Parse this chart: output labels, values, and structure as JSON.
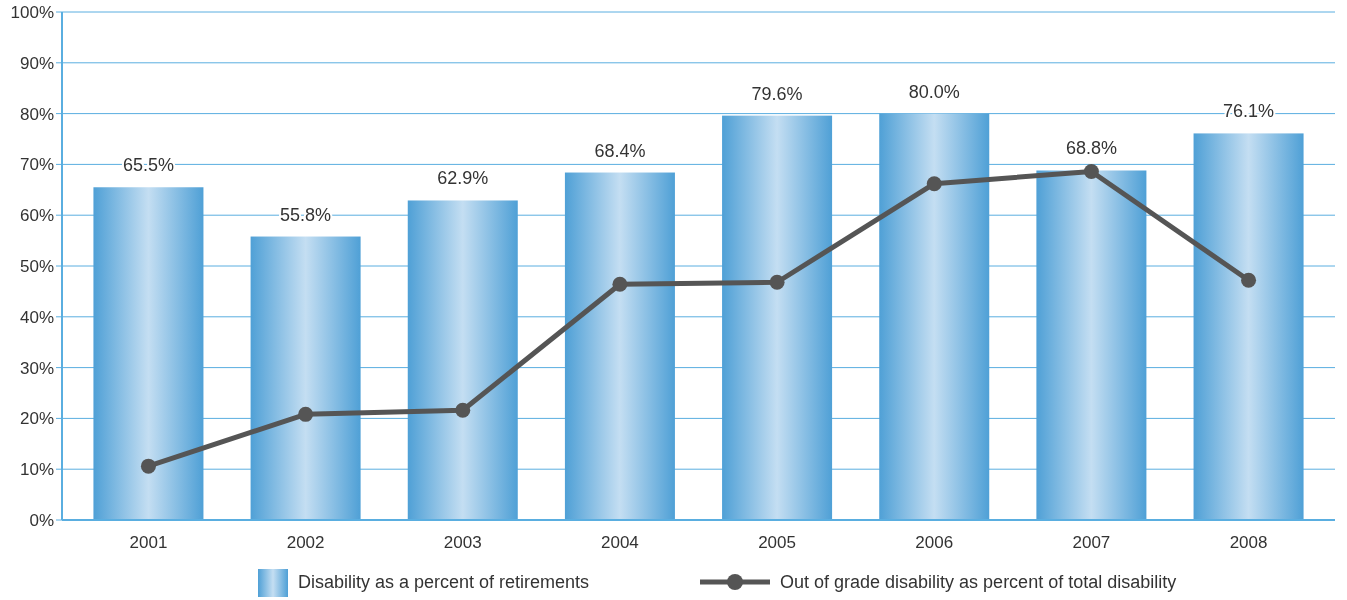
{
  "chart_data": {
    "type": "bar",
    "categories": [
      "2001",
      "2002",
      "2003",
      "2004",
      "2005",
      "2006",
      "2007",
      "2008"
    ],
    "series": [
      {
        "name": "Disability as a percent of retirements",
        "color": "#4fa0d6",
        "values": [
          65.5,
          55.8,
          62.9,
          68.4,
          79.6,
          80.0,
          68.8,
          76.1
        ],
        "value_labels": [
          "65.5%",
          "55.8%",
          "62.9%",
          "68.4%",
          "79.6%",
          "80.0%",
          "68.8%",
          "76.1%"
        ]
      },
      {
        "name": "Out of grade disability as percent of total disability",
        "type": "line",
        "color": "#555555",
        "values": [
          10.6,
          20.8,
          21.6,
          46.4,
          46.8,
          66.2,
          68.6,
          47.2
        ]
      }
    ],
    "ylim": [
      0,
      100
    ],
    "yticks": [
      {
        "value": 0,
        "label": "0%"
      },
      {
        "value": 10,
        "label": "10%"
      },
      {
        "value": 20,
        "label": "20%"
      },
      {
        "value": 30,
        "label": "30%"
      },
      {
        "value": 40,
        "label": "40%"
      },
      {
        "value": 50,
        "label": "50%"
      },
      {
        "value": 60,
        "label": "60%"
      },
      {
        "value": 70,
        "label": "70%"
      },
      {
        "value": 80,
        "label": "80%"
      },
      {
        "value": 90,
        "label": "90%"
      },
      {
        "value": 100,
        "label": "100%"
      }
    ],
    "grid": "y",
    "legend": "bottom",
    "marker": "circle",
    "line_style": "solid"
  }
}
